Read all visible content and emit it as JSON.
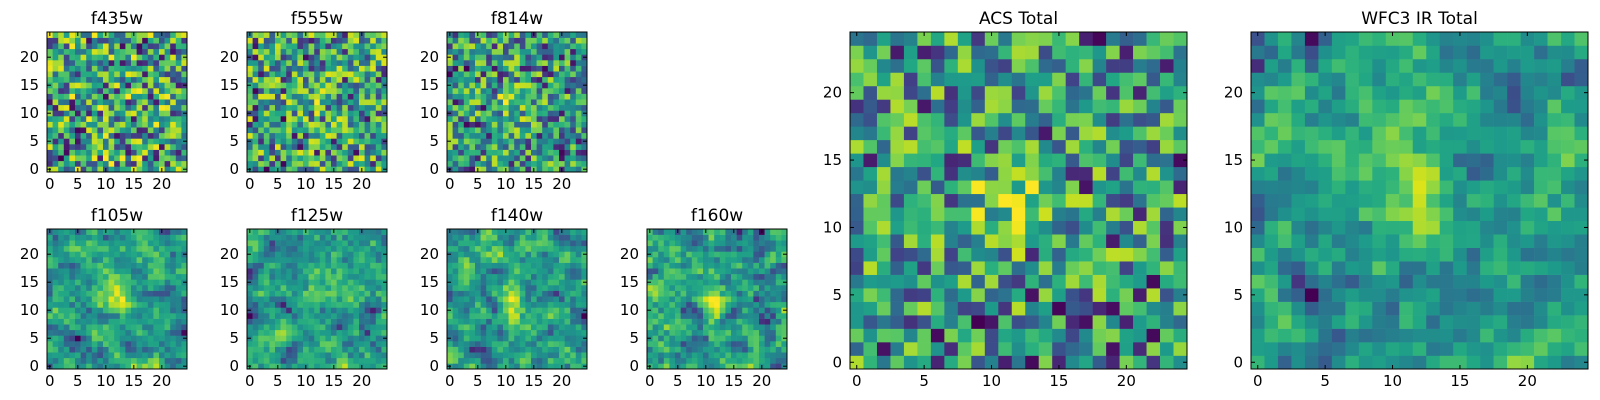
{
  "figure": {
    "background": "#ffffff",
    "colormap": "viridis"
  },
  "chart_data": [
    {
      "type": "heatmap",
      "title": "f435w",
      "grid_size": 25,
      "xlim": [
        0,
        24
      ],
      "ylim": [
        0,
        24
      ],
      "xticks": [
        0,
        5,
        10,
        15,
        20
      ],
      "yticks": [
        0,
        5,
        10,
        15,
        20
      ],
      "grid": false,
      "description": "pixel noise map",
      "seed": 435,
      "blob_strength": 0.0,
      "smooth": 0
    },
    {
      "type": "heatmap",
      "title": "f555w",
      "grid_size": 25,
      "xlim": [
        0,
        24
      ],
      "ylim": [
        0,
        24
      ],
      "xticks": [
        0,
        5,
        10,
        15,
        20
      ],
      "yticks": [
        0,
        5,
        10,
        15,
        20
      ],
      "grid": false,
      "seed": 555,
      "blob_strength": 0.15,
      "smooth": 0
    },
    {
      "type": "heatmap",
      "title": "f814w",
      "grid_size": 25,
      "xlim": [
        0,
        24
      ],
      "ylim": [
        0,
        24
      ],
      "xticks": [
        0,
        5,
        10,
        15,
        20
      ],
      "yticks": [
        0,
        5,
        10,
        15,
        20
      ],
      "grid": false,
      "seed": 814,
      "blob_strength": 0.35,
      "smooth": 0
    },
    {
      "type": "heatmap",
      "title": "f105w",
      "grid_size": 25,
      "xlim": [
        0,
        24
      ],
      "ylim": [
        0,
        24
      ],
      "xticks": [
        0,
        5,
        10,
        15,
        20
      ],
      "yticks": [
        0,
        5,
        10,
        15,
        20
      ],
      "grid": false,
      "seed": 105,
      "blob_strength": 0.35,
      "smooth": 1
    },
    {
      "type": "heatmap",
      "title": "f125w",
      "grid_size": 25,
      "xlim": [
        0,
        24
      ],
      "ylim": [
        0,
        24
      ],
      "xticks": [
        0,
        5,
        10,
        15,
        20
      ],
      "yticks": [
        0,
        5,
        10,
        15,
        20
      ],
      "grid": false,
      "seed": 125,
      "blob_strength": 0.3,
      "smooth": 1
    },
    {
      "type": "heatmap",
      "title": "f140w",
      "grid_size": 25,
      "xlim": [
        0,
        24
      ],
      "ylim": [
        0,
        24
      ],
      "xticks": [
        0,
        5,
        10,
        15,
        20
      ],
      "yticks": [
        0,
        5,
        10,
        15,
        20
      ],
      "grid": false,
      "seed": 140,
      "blob_strength": 0.4,
      "smooth": 1
    },
    {
      "type": "heatmap",
      "title": "f160w",
      "grid_size": 25,
      "xlim": [
        0,
        24
      ],
      "ylim": [
        0,
        24
      ],
      "xticks": [
        0,
        5,
        10,
        15,
        20
      ],
      "yticks": [
        0,
        5,
        10,
        15,
        20
      ],
      "grid": false,
      "seed": 160,
      "blob_strength": 0.4,
      "smooth": 1
    },
    {
      "type": "heatmap",
      "title": "ACS Total",
      "grid_size": 25,
      "xlim": [
        0,
        24
      ],
      "ylim": [
        0,
        24
      ],
      "xticks": [
        0,
        5,
        10,
        15,
        20
      ],
      "yticks": [
        0,
        5,
        10,
        15,
        20
      ],
      "grid": false,
      "seed": 999,
      "blob_strength": 0.35,
      "smooth": 0
    },
    {
      "type": "heatmap",
      "title": "WFC3 IR Total",
      "grid_size": 25,
      "xlim": [
        0,
        24
      ],
      "ylim": [
        0,
        24
      ],
      "xticks": [
        0,
        5,
        10,
        15,
        20
      ],
      "yticks": [
        0,
        5,
        10,
        15,
        20
      ],
      "grid": false,
      "seed": 777,
      "blob_strength": 0.55,
      "smooth": 1
    }
  ]
}
